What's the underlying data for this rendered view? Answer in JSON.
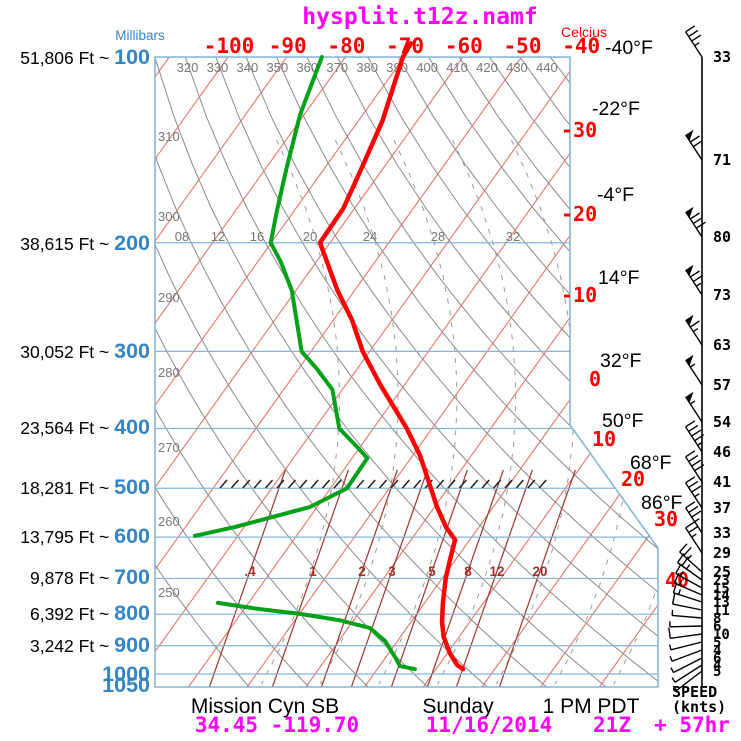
{
  "title": "hysplit.t12z.namf",
  "axes": {
    "left_unit": "Millibars",
    "top_unit": "Celcius",
    "wind_header_1": "SPEED",
    "wind_header_2": "(knts)"
  },
  "footer": {
    "station": "Mission Cyn SB",
    "day": "Sunday",
    "time": "1 PM PDT",
    "latlon": "34.45 -119.70",
    "date": "11/16/2014",
    "cycle": "21Z",
    "forecast_offset": "+ 57hr"
  },
  "pressure_axis": [
    {
      "mb": "100",
      "alt": "51,806 Ft ~ "
    },
    {
      "mb": "200",
      "alt": "38,615 Ft ~ "
    },
    {
      "mb": "300",
      "alt": "30,052 Ft ~ "
    },
    {
      "mb": "400",
      "alt": "23,564 Ft ~ "
    },
    {
      "mb": "500",
      "alt": "18,281 Ft ~ "
    },
    {
      "mb": "600",
      "alt": "13,795 Ft ~ "
    },
    {
      "mb": "700",
      "alt": "9,878 Ft ~ "
    },
    {
      "mb": "800",
      "alt": "6,392 Ft ~ "
    },
    {
      "mb": "900",
      "alt": "3,242 Ft ~ "
    },
    {
      "mb": "1000",
      "alt": ""
    },
    {
      "mb": "1050",
      "alt": ""
    }
  ],
  "top_ticks": [
    "-100",
    "-90",
    "-80",
    "-70",
    "-60",
    "-50",
    "-40"
  ],
  "right_ticks": [
    "-30",
    "-20",
    "-10",
    "0",
    "10",
    "20",
    "30",
    "40"
  ],
  "fahrenheit_ticks": [
    "-40°F",
    "-22°F",
    "-4°F",
    "14°F",
    "32°F",
    "50°F",
    "68°F",
    "86°F"
  ],
  "grid_labels": {
    "theta_top": [
      "320",
      "330",
      "340",
      "350",
      "360",
      "370",
      "380",
      "390",
      "400",
      "410",
      "420",
      "430",
      "440"
    ],
    "theta_left": [
      "310",
      "300",
      "290",
      "280",
      "270",
      "260",
      "250"
    ],
    "row_200mb": [
      "08",
      "12",
      "16",
      "20",
      "24",
      "28",
      "32"
    ],
    "mixing_ratio": [
      ".4",
      "1",
      "2",
      "3",
      "5",
      "8",
      "12",
      "20"
    ]
  },
  "wind_speeds": [
    "33",
    "71",
    "80",
    "73",
    "63",
    "57",
    "54",
    "46",
    "41",
    "37",
    "33",
    "29",
    "25",
    "23",
    "15",
    "14",
    "13",
    "11",
    "8",
    "6",
    "10",
    "5",
    "4",
    "6",
    "4",
    "5"
  ],
  "colors": {
    "title": "#ff00ff",
    "temperature": "#fe0000",
    "dewpoint": "#00a018",
    "pressure_grid": "#85b5d8",
    "pressure_labels": "#3585c5",
    "isotherms": "#e4766b",
    "adiabats": "#8a8a8a",
    "moist_adiabats": "#9a9a9a",
    "mixing_ratio": "#9e342b",
    "hatch": "#222222",
    "wind": "#000000"
  },
  "chart_data": {
    "type": "line",
    "subtype": "skew_t_log_p",
    "title": "hysplit.t12z.namf",
    "x_axis_label": "Celcius",
    "y_axis_label": "Millibars",
    "pressure_ticks_mb": [
      100,
      200,
      300,
      400,
      500,
      600,
      700,
      800,
      900,
      1000,
      1050
    ],
    "altitude_tick_labels_ft": [
      "51,806",
      "38,615",
      "30,052",
      "23,564",
      "18,281",
      "13,795",
      "9,878",
      "6,392",
      "3,242"
    ],
    "top_celsius_ticks": [
      -100,
      -90,
      -80,
      -70,
      -60,
      -50,
      -40
    ],
    "right_celsius_ticks": [
      -30,
      -20,
      -10,
      0,
      10,
      20,
      30,
      40
    ],
    "fahrenheit_ticks": [
      -40,
      -22,
      -4,
      14,
      32,
      50,
      68,
      86
    ],
    "dry_adiabat_labels_k": [
      250,
      260,
      270,
      280,
      290,
      300,
      310,
      320,
      330,
      340,
      350,
      360,
      370,
      380,
      390,
      400,
      410,
      420,
      430,
      440
    ],
    "mixing_ratio_lines_g_kg": [
      0.4,
      1,
      2,
      3,
      5,
      8,
      12,
      20
    ],
    "level_200mb_row_labels": [
      "08",
      "12",
      "16",
      "20",
      "24",
      "28",
      "32"
    ],
    "grid": "on",
    "series": [
      {
        "name": "temperature",
        "units": {
          "pressure": "mb",
          "value": "C"
        },
        "color": "#fe0000",
        "points": [
          [
            982,
            14.6
          ],
          [
            967,
            13.1
          ],
          [
            925,
            10.4
          ],
          [
            871,
            7.4
          ],
          [
            824,
            5.3
          ],
          [
            767,
            3.1
          ],
          [
            700,
            0.6
          ],
          [
            654,
            -0.9
          ],
          [
            606,
            -2.5
          ],
          [
            578,
            -5.6
          ],
          [
            536,
            -9.6
          ],
          [
            500,
            -12.9
          ],
          [
            442,
            -18.8
          ],
          [
            400,
            -24.3
          ],
          [
            373,
            -28.5
          ],
          [
            340,
            -34.1
          ],
          [
            300,
            -41.2
          ],
          [
            267,
            -46.8
          ],
          [
            239,
            -52.9
          ],
          [
            200,
            -61.7
          ],
          [
            176,
            -61.9
          ],
          [
            150,
            -63.8
          ],
          [
            127,
            -65.9
          ],
          [
            100,
            -70.2
          ],
          [
            95,
            -70.5
          ]
        ]
      },
      {
        "name": "dewpoint_lower_segment",
        "units": {
          "pressure": "mb",
          "value": "C"
        },
        "color": "#00a018",
        "points": [
          [
            982,
            6.4
          ],
          [
            971,
            3.5
          ],
          [
            938,
            1.5
          ],
          [
            884,
            -2.1
          ],
          [
            842,
            -6.3
          ],
          [
            818,
            -12.4
          ],
          [
            799,
            -19.9
          ],
          [
            785,
            -27.3
          ],
          [
            767,
            -35.2
          ]
        ]
      },
      {
        "name": "dewpoint_upper_segment",
        "units": {
          "pressure": "mb",
          "value": "C"
        },
        "color": "#00a018",
        "points": [
          [
            597,
            -47.3
          ],
          [
            578,
            -41.6
          ],
          [
            536,
            -31.2
          ],
          [
            500,
            -27.2
          ],
          [
            447,
            -27.4
          ],
          [
            428,
            -30.6
          ],
          [
            400,
            -35.8
          ],
          [
            346,
            -41.7
          ],
          [
            321,
            -46.7
          ],
          [
            300,
            -51.6
          ],
          [
            239,
            -60.7
          ],
          [
            215,
            -66.0
          ],
          [
            200,
            -70.1
          ],
          [
            177,
            -73.0
          ],
          [
            152,
            -76.4
          ],
          [
            124,
            -80.7
          ],
          [
            100,
            -84.0
          ]
        ]
      }
    ],
    "wind_profile_knots": [
      33,
      71,
      80,
      73,
      63,
      57,
      54,
      46,
      41,
      37,
      33,
      29,
      25,
      23,
      15,
      14,
      13,
      11,
      8,
      6,
      10,
      5,
      4,
      6,
      4,
      5
    ],
    "legend_position": "none",
    "annotations": [
      "hatched freezing-level band at 500 mb"
    ]
  }
}
